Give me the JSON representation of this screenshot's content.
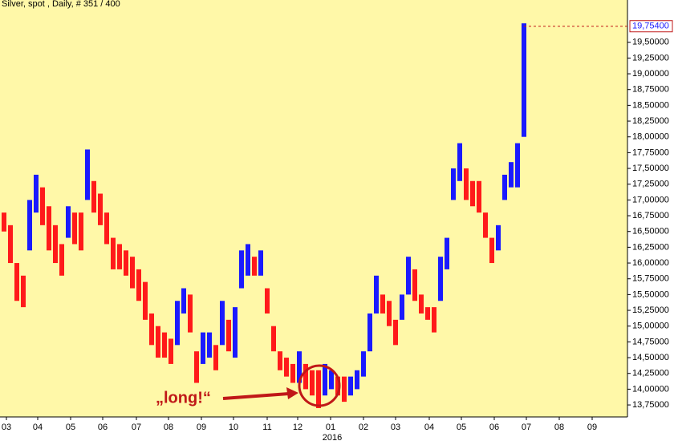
{
  "chart_data": {
    "type": "range-bar",
    "title": "Silver, spot , Daily, # 351 / 400",
    "low": [
      16.5,
      16.0,
      15.4,
      15.3,
      16.2,
      16.8,
      16.6,
      16.2,
      16.0,
      15.8,
      16.4,
      16.3,
      16.2,
      17.0,
      16.8,
      16.6,
      16.3,
      15.9,
      15.9,
      15.8,
      15.6,
      15.4,
      15.1,
      14.7,
      14.5,
      14.5,
      14.4,
      14.7,
      15.2,
      14.9,
      14.1,
      14.4,
      14.5,
      14.3,
      14.7,
      14.6,
      14.5,
      15.6,
      15.8,
      15.8,
      15.8,
      15.2,
      14.6,
      14.3,
      14.2,
      14.1,
      14.1,
      14.0,
      13.9,
      13.7,
      13.9,
      14.0,
      13.9,
      13.8,
      13.9,
      14.0,
      14.2,
      14.6,
      15.2,
      15.2,
      15.0,
      14.7,
      15.1,
      15.5,
      15.4,
      15.2,
      15.1,
      14.9,
      15.4,
      15.9,
      17.0,
      17.3,
      17.0,
      16.9,
      16.8,
      16.4,
      16.0,
      16.2,
      17.0,
      17.2,
      17.2,
      18.0
    ],
    "high": [
      16.8,
      16.6,
      16.0,
      15.8,
      17.0,
      17.4,
      17.2,
      16.9,
      16.6,
      16.3,
      16.9,
      16.8,
      16.8,
      17.8,
      17.3,
      17.1,
      16.8,
      16.4,
      16.3,
      16.2,
      16.1,
      15.9,
      15.7,
      15.2,
      15.0,
      14.9,
      14.8,
      15.4,
      15.6,
      15.5,
      14.6,
      14.9,
      14.9,
      14.7,
      15.4,
      15.1,
      15.3,
      16.2,
      16.3,
      16.1,
      16.2,
      15.6,
      15.0,
      14.6,
      14.5,
      14.4,
      14.6,
      14.4,
      14.3,
      14.3,
      14.4,
      14.3,
      14.2,
      14.2,
      14.2,
      14.3,
      14.6,
      15.2,
      15.8,
      15.5,
      15.4,
      15.1,
      15.5,
      16.1,
      15.9,
      15.5,
      15.3,
      15.3,
      16.1,
      16.4,
      17.5,
      17.9,
      17.5,
      17.3,
      17.3,
      16.8,
      16.4,
      16.6,
      17.4,
      17.6,
      17.9,
      19.8
    ],
    "up_color": "#1a1aff",
    "down_color": "#ff1a1a",
    "background": "#fff8a8",
    "xlim": [
      -0.625,
      97.125
    ],
    "ylim": [
      13.56,
      20.17
    ],
    "grid": false,
    "xticks": [
      {
        "value": 0.375,
        "label": "03"
      },
      {
        "value": 5.25,
        "label": "04"
      },
      {
        "value": 10.375,
        "label": "05"
      },
      {
        "value": 15.375,
        "label": "06"
      },
      {
        "value": 20.625,
        "label": "07"
      },
      {
        "value": 25.625,
        "label": "08"
      },
      {
        "value": 30.75,
        "label": "09"
      },
      {
        "value": 35.75,
        "label": "10"
      },
      {
        "value": 41,
        "label": "11"
      },
      {
        "value": 45.75,
        "label": "12"
      },
      {
        "value": 50.875,
        "label": "01"
      },
      {
        "value": 56,
        "label": "02"
      },
      {
        "value": 61,
        "label": "03"
      },
      {
        "value": 66.25,
        "label": "04"
      },
      {
        "value": 71.25,
        "label": "05"
      },
      {
        "value": 76.375,
        "label": "06"
      },
      {
        "value": 81.375,
        "label": "07"
      },
      {
        "value": 86.5,
        "label": "08"
      },
      {
        "value": 91.625,
        "label": "09"
      }
    ],
    "year_label": "2016",
    "yticks": [
      {
        "value": 13.75,
        "label": "13,75000"
      },
      {
        "value": 14,
        "label": "14,00000"
      },
      {
        "value": 14.25,
        "label": "14,25000"
      },
      {
        "value": 14.5,
        "label": "14,50000"
      },
      {
        "value": 14.75,
        "label": "14,75000"
      },
      {
        "value": 15,
        "label": "15,00000"
      },
      {
        "value": 15.25,
        "label": "15,25000"
      },
      {
        "value": 15.5,
        "label": "15,50000"
      },
      {
        "value": 15.75,
        "label": "15,75000"
      },
      {
        "value": 16,
        "label": "16,00000"
      },
      {
        "value": 16.25,
        "label": "16,25000"
      },
      {
        "value": 16.5,
        "label": "16,50000"
      },
      {
        "value": 16.75,
        "label": "16,75000"
      },
      {
        "value": 17,
        "label": "17,00000"
      },
      {
        "value": 17.25,
        "label": "17,25000"
      },
      {
        "value": 17.5,
        "label": "17,50000"
      },
      {
        "value": 17.75,
        "label": "17,75000"
      },
      {
        "value": 18,
        "label": "18,00000"
      },
      {
        "value": 18.25,
        "label": "18,25000"
      },
      {
        "value": 18.5,
        "label": "18,50000"
      },
      {
        "value": 18.75,
        "label": "18,75000"
      },
      {
        "value": 19,
        "label": "19,00000"
      },
      {
        "value": 19.25,
        "label": "19,25000"
      },
      {
        "value": 19.5,
        "label": "19,50000"
      }
    ],
    "last_price": {
      "value": 19.754,
      "label": "19,75400"
    },
    "annotation": "„long!“"
  }
}
